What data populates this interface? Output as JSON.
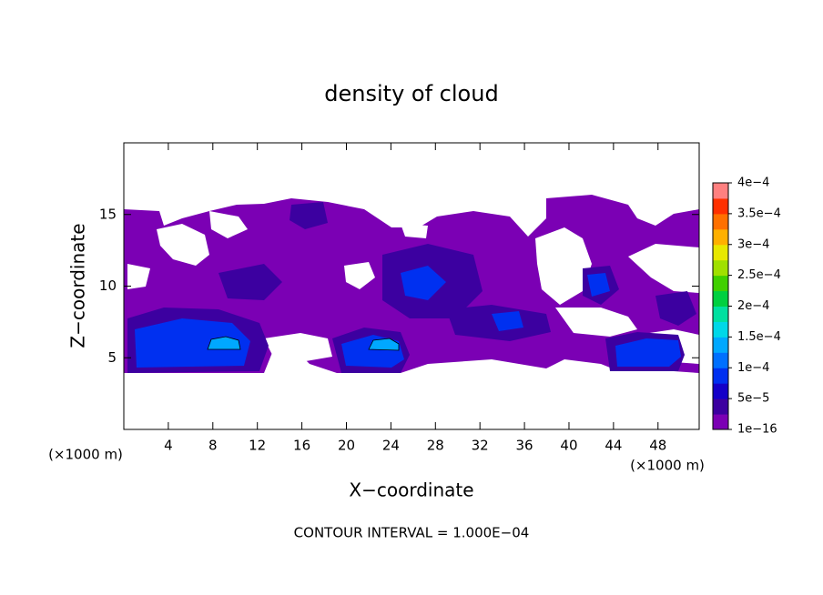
{
  "chart_data": {
    "type": "contour",
    "title": "density of cloud",
    "x_label": "X−coordinate",
    "y_label": "Z−coordinate",
    "annotations": [
      "(×1000 m)",
      "(×1000 m)",
      "CONTOUR INTERVAL = 1.000E−04"
    ],
    "xlim": [
      0,
      51.7
    ],
    "xticks": [
      4,
      8,
      12,
      16,
      20,
      24,
      28,
      32,
      36,
      40,
      44,
      48
    ],
    "ylim": [
      0,
      20
    ],
    "yticks": [
      5,
      10,
      15
    ],
    "colorbar": {
      "ticks": [
        {
          "value": 1e-16,
          "label": "1e−16"
        },
        {
          "value": 5e-05,
          "label": "5e−5"
        },
        {
          "value": 0.0001,
          "label": "1e−4"
        },
        {
          "value": 0.00015,
          "label": "1.5e−4"
        },
        {
          "value": 0.0002,
          "label": "2e−4"
        },
        {
          "value": 0.00025,
          "label": "2.5e−4"
        },
        {
          "value": 0.0003,
          "label": "3e−4"
        },
        {
          "value": 0.00035,
          "label": "3.5e−4"
        },
        {
          "value": 0.0004,
          "label": "4e−4"
        }
      ],
      "colors": [
        "#7b00b4",
        "#3c00a0",
        "#1400c8",
        "#0030f0",
        "#0070ff",
        "#00a8ff",
        "#00d8e8",
        "#00e0a0",
        "#00d040",
        "#40d000",
        "#a0e000",
        "#e8e800",
        "#ffb000",
        "#ff7000",
        "#ff3000",
        "#ff8080"
      ]
    }
  }
}
